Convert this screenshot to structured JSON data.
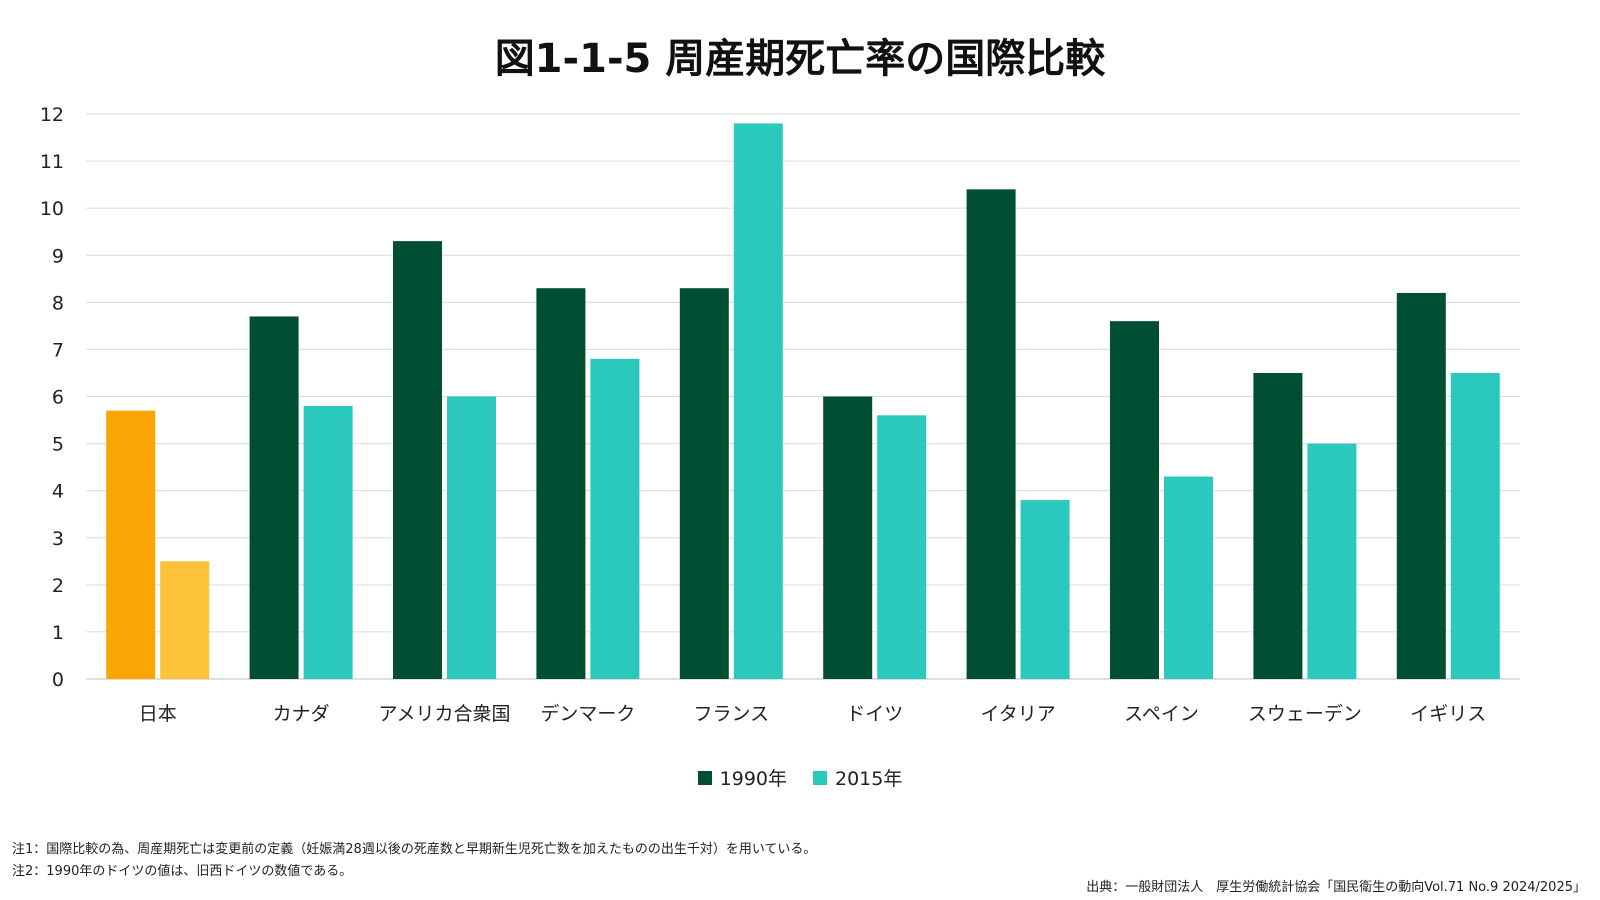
{
  "title": "図1-1-5 周産期死亡率の国際比較",
  "chart_data": {
    "type": "bar",
    "title": "図1-1-5 周産期死亡率の国際比較",
    "categories": [
      "日本",
      "カナダ",
      "アメリカ合衆国",
      "デンマーク",
      "フランス",
      "ドイツ",
      "イタリア",
      "スペイン",
      "スウェーデン",
      "イギリス"
    ],
    "series": [
      {
        "name": "1990年",
        "values": [
          5.7,
          7.7,
          9.3,
          8.3,
          8.3,
          6.0,
          10.4,
          7.6,
          6.5,
          8.2
        ],
        "color": "#014f33"
      },
      {
        "name": "2015年",
        "values": [
          2.5,
          5.8,
          6.0,
          6.8,
          11.8,
          5.6,
          3.8,
          4.3,
          5.0,
          6.5
        ],
        "color": "#2ac8bd"
      }
    ],
    "highlight": {
      "category": "日本",
      "colors": [
        "#fba504",
        "#fbc23a"
      ]
    },
    "ylim": [
      0,
      12
    ],
    "yticks": [
      0,
      1,
      2,
      3,
      4,
      5,
      6,
      7,
      8,
      9,
      10,
      11,
      12
    ],
    "grid": true,
    "legend_position": "bottom-center"
  },
  "notes": [
    "注1：国際比較の為、周産期死亡は変更前の定義（妊娠満28週以後の死産数と早期新生児死亡数を加えたものの出生千対）を用いている。",
    "注2：1990年のドイツの値は、旧西ドイツの数値である。"
  ],
  "source": "出典：一般財団法人　厚生労働統計協会「国民衛生の動向Vol.71 No.9 2024/2025」"
}
